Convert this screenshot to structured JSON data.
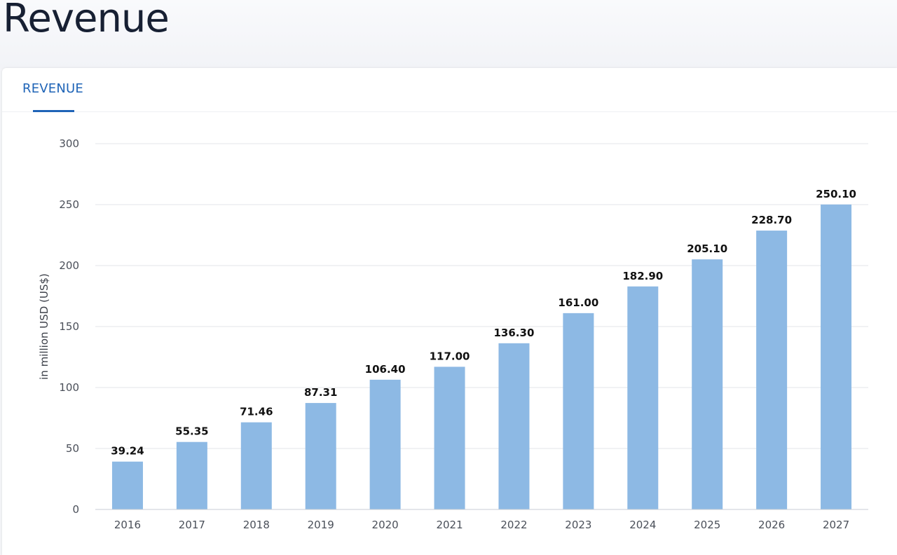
{
  "page": {
    "title": "Revenue"
  },
  "tabs": [
    {
      "label": "REVENUE",
      "active": true
    }
  ],
  "colors": {
    "accent": "#1f64b7",
    "bar": "#8db9e4",
    "grid": "#e3e6ea",
    "axis": "#c9ced6"
  },
  "chart_data": {
    "type": "bar",
    "categories": [
      "2016",
      "2017",
      "2018",
      "2019",
      "2020",
      "2021",
      "2022",
      "2023",
      "2024",
      "2025",
      "2026",
      "2027"
    ],
    "values": [
      39.24,
      55.35,
      71.46,
      87.31,
      106.4,
      117.0,
      136.3,
      161.0,
      182.9,
      205.1,
      228.7,
      250.1
    ],
    "value_labels": [
      "39.24",
      "55.35",
      "71.46",
      "87.31",
      "106.40",
      "117.00",
      "136.30",
      "161.00",
      "182.90",
      "205.10",
      "228.70",
      "250.10"
    ],
    "ylabel": "in million USD (US$)",
    "xlabel": "",
    "ylim": [
      0,
      300
    ],
    "yticks": [
      "0",
      "50",
      "100",
      "150",
      "200",
      "250",
      "300"
    ],
    "grid": true
  }
}
